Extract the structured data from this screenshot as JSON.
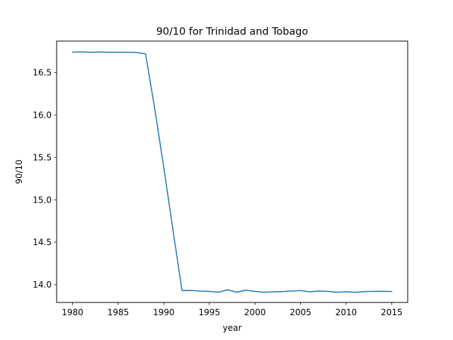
{
  "chart_data": {
    "type": "line",
    "title": "90/10 for Trinidad and Tobago",
    "xlabel": "year",
    "ylabel": "90/10",
    "xlim": [
      1978.25,
      2016.75
    ],
    "ylim": [
      13.79,
      16.87
    ],
    "x_ticks": [
      1980,
      1985,
      1990,
      1995,
      2000,
      2005,
      2010,
      2015
    ],
    "x_tick_labels": [
      "1980",
      "1985",
      "1990",
      "1995",
      "2000",
      "2005",
      "2010",
      "2015"
    ],
    "y_ticks": [
      14.0,
      14.5,
      15.0,
      15.5,
      16.0,
      16.5
    ],
    "y_tick_labels": [
      "14.0",
      "14.5",
      "15.0",
      "15.5",
      "16.0",
      "16.5"
    ],
    "grid": false,
    "series": [
      {
        "color": "#1f77b4",
        "x": [
          1980,
          1981,
          1982,
          1983,
          1984,
          1985,
          1986,
          1987,
          1988,
          1989,
          1990,
          1991,
          1992,
          1993,
          1994,
          1995,
          1996,
          1997,
          1998,
          1999,
          2000,
          2001,
          2002,
          2003,
          2004,
          2005,
          2006,
          2007,
          2008,
          2009,
          2010,
          2011,
          2012,
          2013,
          2014,
          2015
        ],
        "y": [
          16.74,
          16.743,
          16.738,
          16.742,
          16.737,
          16.738,
          16.739,
          16.735,
          16.72,
          16.08,
          15.38,
          14.65,
          13.93,
          13.932,
          13.924,
          13.92,
          13.91,
          13.94,
          13.91,
          13.935,
          13.92,
          13.91,
          13.915,
          13.918,
          13.925,
          13.93,
          13.915,
          13.925,
          13.92,
          13.91,
          13.916,
          13.91,
          13.918,
          13.92,
          13.921,
          13.919
        ]
      }
    ]
  }
}
